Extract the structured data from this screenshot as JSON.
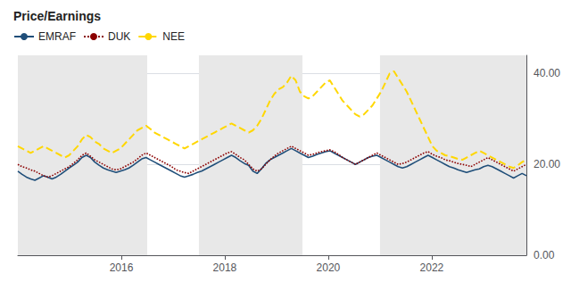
{
  "chart_data": {
    "type": "line",
    "title": "Price/Earnings",
    "x": [
      2014,
      2014.0826,
      2014.1652,
      2014.2478,
      2014.3304,
      2014.413,
      2014.4956,
      2014.5782,
      2014.6608,
      2014.7434,
      2014.8261,
      2014.9087,
      2014.9913,
      2015.0739,
      2015.1565,
      2015.2391,
      2015.3217,
      2015.4043,
      2015.4869,
      2015.5695,
      2015.6521,
      2015.7347,
      2015.8173,
      2015.8999,
      2015.9825,
      2016.0651,
      2016.1477,
      2016.2303,
      2016.3129,
      2016.3955,
      2016.4782,
      2016.5608,
      2016.6434,
      2016.726,
      2016.8086,
      2016.8912,
      2016.9738,
      2017.0564,
      2017.139,
      2017.2216,
      2017.3042,
      2017.3868,
      2017.4694,
      2017.552,
      2017.6346,
      2017.7172,
      2017.7998,
      2017.8824,
      2017.965,
      2018.0476,
      2018.1303,
      2018.2129,
      2018.2955,
      2018.3781,
      2018.4607,
      2018.5433,
      2018.6259,
      2018.7085,
      2018.7911,
      2018.8737,
      2018.9563,
      2019.0389,
      2019.1215,
      2019.2041,
      2019.2867,
      2019.3693,
      2019.4519,
      2019.5345,
      2019.6171,
      2019.6997,
      2019.7824,
      2019.865,
      2019.9476,
      2020.0302,
      2020.1128,
      2020.1954,
      2020.278,
      2020.3606,
      2020.4432,
      2020.5258,
      2020.6084,
      2020.691,
      2020.7736,
      2020.8562,
      2020.9388,
      2021.0214,
      2021.104,
      2021.1866,
      2021.2692,
      2021.3518,
      2021.4345,
      2021.5171,
      2021.5997,
      2021.6823,
      2021.7649,
      2021.8475,
      2021.9301,
      2022.0127,
      2022.0953,
      2022.1779,
      2022.2605,
      2022.3431,
      2022.4257,
      2022.5083,
      2022.5909,
      2022.6735,
      2022.7561,
      2022.8387,
      2022.9213,
      2023.0039,
      2023.0866,
      2023.1692,
      2023.2518,
      2023.3344,
      2023.417,
      2023.4996,
      2023.5822,
      2023.6648,
      2023.7474,
      2023.83
    ],
    "series": [
      {
        "name": "EMRAF",
        "color": "#1F4E79",
        "line_style": "solid",
        "values": [
          18.5,
          17.8,
          17.2,
          16.8,
          16.5,
          17.0,
          17.5,
          17.2,
          16.8,
          17.2,
          17.8,
          18.5,
          19.2,
          19.8,
          20.5,
          21.5,
          22.0,
          21.5,
          20.5,
          19.8,
          19.2,
          18.8,
          18.5,
          18.2,
          18.5,
          18.8,
          19.2,
          19.8,
          20.5,
          21.2,
          21.5,
          21.0,
          20.5,
          20.0,
          19.5,
          19.0,
          18.5,
          18.0,
          17.5,
          17.2,
          17.5,
          17.8,
          18.2,
          18.5,
          19.0,
          19.5,
          20.0,
          20.5,
          21.0,
          21.5,
          22.0,
          21.5,
          20.8,
          20.2,
          19.8,
          18.5,
          18.0,
          19.0,
          20.2,
          21.0,
          21.5,
          22.0,
          22.5,
          23.0,
          23.5,
          23.0,
          22.5,
          22.0,
          21.5,
          21.8,
          22.2,
          22.5,
          22.8,
          23.0,
          22.5,
          22.0,
          21.5,
          21.0,
          20.5,
          20.0,
          20.5,
          21.0,
          21.5,
          21.8,
          22.0,
          21.5,
          21.0,
          20.5,
          20.0,
          19.5,
          19.2,
          19.5,
          20.0,
          20.5,
          21.0,
          21.5,
          22.0,
          21.5,
          21.0,
          20.5,
          20.0,
          19.5,
          19.2,
          18.8,
          18.5,
          18.2,
          18.5,
          18.8,
          19.0,
          19.5,
          19.8,
          19.5,
          19.0,
          18.5,
          18.0,
          17.5,
          17.0,
          17.5,
          18.0,
          17.5
        ]
      },
      {
        "name": "DUK",
        "color": "#8B0000",
        "line_style": "dotted",
        "values": [
          20.0,
          19.5,
          19.2,
          18.8,
          18.5,
          18.0,
          17.5,
          17.2,
          17.5,
          18.0,
          18.5,
          19.0,
          19.5,
          20.2,
          21.0,
          22.0,
          22.5,
          21.8,
          21.0,
          20.5,
          20.0,
          19.5,
          19.0,
          18.8,
          19.0,
          19.5,
          20.0,
          20.5,
          21.2,
          22.0,
          22.5,
          22.0,
          21.5,
          21.0,
          20.5,
          20.0,
          19.5,
          18.8,
          18.5,
          18.2,
          18.0,
          18.5,
          19.0,
          19.5,
          20.0,
          20.5,
          21.0,
          21.5,
          22.0,
          22.5,
          22.8,
          22.2,
          21.5,
          21.0,
          20.0,
          19.0,
          18.5,
          19.0,
          20.0,
          21.0,
          21.8,
          22.5,
          23.0,
          23.5,
          24.0,
          23.5,
          23.0,
          22.5,
          22.0,
          22.2,
          22.5,
          22.8,
          23.0,
          23.2,
          22.8,
          22.2,
          21.5,
          21.0,
          20.5,
          20.0,
          20.5,
          21.0,
          21.5,
          22.0,
          22.5,
          22.0,
          21.5,
          21.0,
          20.5,
          20.0,
          20.2,
          20.5,
          21.0,
          21.5,
          22.0,
          22.5,
          22.8,
          22.2,
          21.8,
          21.5,
          21.0,
          20.8,
          20.5,
          20.2,
          20.0,
          19.8,
          19.5,
          20.0,
          20.5,
          21.0,
          21.5,
          21.0,
          20.5,
          20.0,
          19.5,
          19.0,
          18.5,
          19.0,
          19.5,
          20.0
        ]
      },
      {
        "name": "NEE",
        "color": "#FFD700",
        "line_style": "dashed",
        "values": [
          24.0,
          23.5,
          23.0,
          22.5,
          23.0,
          23.5,
          24.0,
          23.5,
          23.0,
          22.5,
          22.0,
          21.5,
          22.0,
          23.0,
          24.0,
          25.5,
          26.5,
          26.0,
          25.0,
          24.5,
          23.5,
          23.0,
          22.5,
          23.0,
          23.5,
          24.5,
          25.5,
          26.5,
          27.5,
          28.0,
          28.5,
          27.8,
          27.0,
          26.5,
          26.0,
          25.5,
          25.0,
          24.5,
          24.0,
          23.5,
          24.0,
          24.5,
          25.0,
          25.5,
          26.0,
          26.5,
          27.0,
          27.5,
          28.0,
          28.5,
          29.0,
          28.5,
          28.0,
          27.5,
          27.0,
          27.5,
          28.5,
          30.0,
          32.0,
          34.0,
          35.5,
          36.5,
          37.0,
          38.0,
          39.5,
          38.5,
          36.0,
          35.0,
          34.5,
          35.0,
          36.0,
          37.0,
          38.0,
          38.5,
          37.0,
          35.5,
          34.0,
          33.0,
          32.0,
          31.0,
          30.5,
          31.0,
          32.0,
          33.0,
          34.5,
          36.0,
          38.0,
          40.0,
          40.5,
          39.0,
          37.5,
          36.0,
          34.0,
          32.0,
          30.0,
          28.0,
          26.0,
          24.0,
          23.0,
          22.5,
          22.0,
          21.8,
          21.5,
          21.2,
          21.0,
          21.5,
          22.0,
          22.5,
          23.0,
          22.5,
          22.0,
          21.5,
          21.0,
          20.5,
          20.0,
          19.5,
          19.2,
          19.8,
          20.5,
          21.0
        ]
      }
    ],
    "shaded_bands": [
      [
        2014.0,
        2016.5
      ],
      [
        2017.5,
        2019.5
      ],
      [
        2021.0,
        2023.83
      ]
    ],
    "band_color": "#E8E8E8",
    "xlim": [
      2014.0,
      2023.83
    ],
    "xticks": [
      2016,
      2018,
      2020,
      2022
    ],
    "ylim": [
      0,
      44
    ],
    "yticks": [
      {
        "value": 0,
        "label": "0.00"
      },
      {
        "value": 20,
        "label": "20.00"
      },
      {
        "value": 40,
        "label": "40.00"
      }
    ],
    "grid": true,
    "legend": "upper left"
  }
}
